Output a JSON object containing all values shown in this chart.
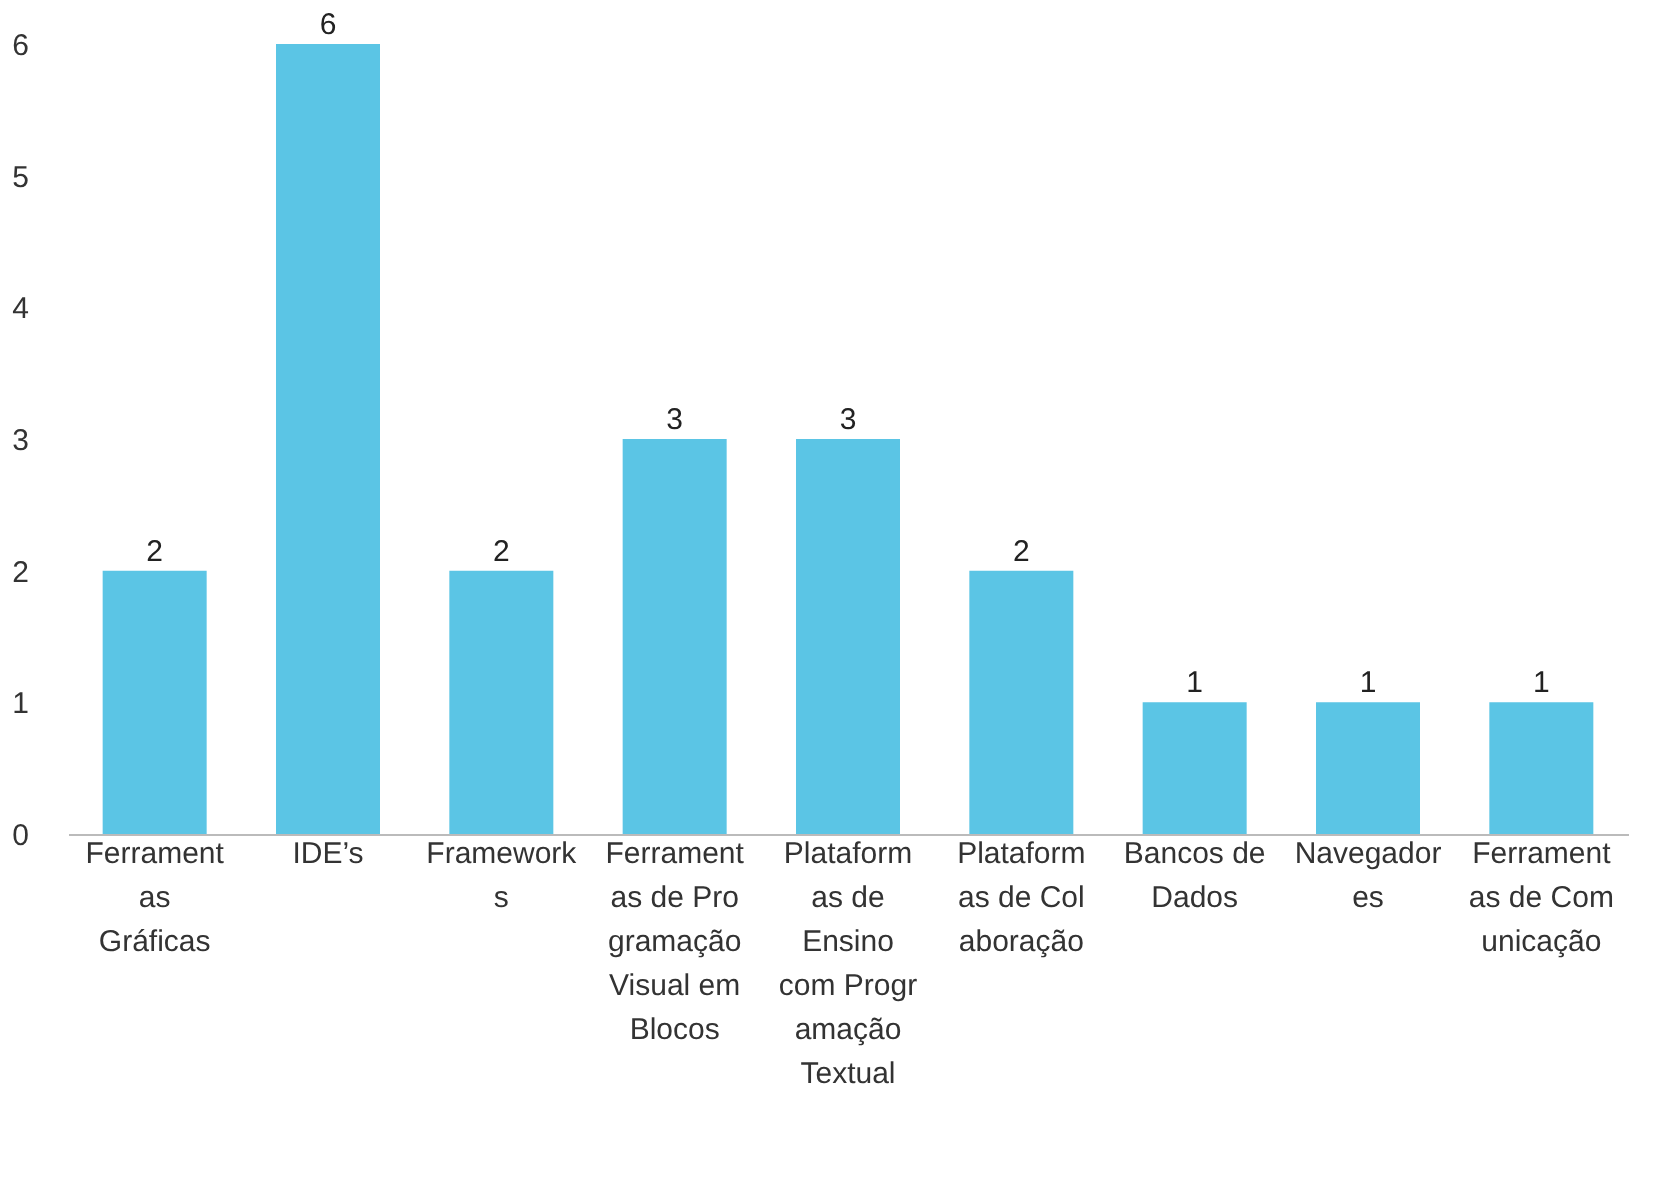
{
  "chart_data": {
    "type": "bar",
    "categories": [
      "Ferramentas Gráficas",
      "IDE’s",
      "Frameworks",
      "Ferramentas de Programação Visual em Blocos",
      "Plataformas de Ensino com Programação Textual",
      "Plataformas de Colaboração",
      "Bancos de Dados",
      "Navegadores",
      "Ferramentas de Comunicação"
    ],
    "values": [
      2,
      6,
      2,
      3,
      3,
      2,
      1,
      1,
      1
    ],
    "color": "#5bc5e5",
    "ylim": [
      0,
      6
    ],
    "yticks": [
      0,
      1,
      2,
      3,
      4,
      5,
      6
    ],
    "grid": false,
    "data_labels": true
  }
}
